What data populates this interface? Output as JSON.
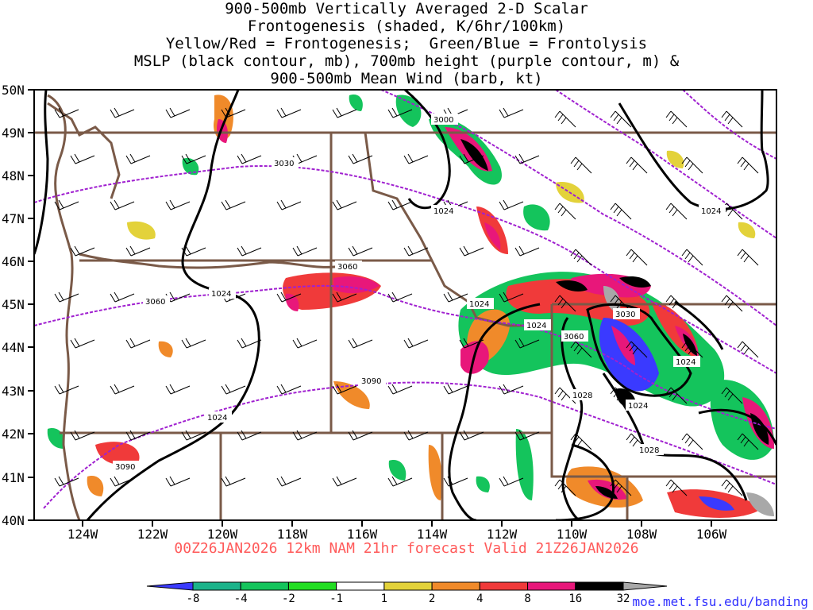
{
  "title_lines": [
    "900-500mb Vertically Averaged 2-D Scalar",
    "Frontogenesis (shaded, K/6hr/100km)",
    "Yellow/Red = Frontogenesis;  Green/Blue = Frontolysis",
    "MSLP (black contour, mb), 700mb height (purple contour, m) &",
    "900-500mb Mean Wind (barb, kt)"
  ],
  "valid_line": "00Z26JAN2026 12km NAM 21hr forecast Valid 21Z26JAN2026",
  "credit": "moe.met.fsu.edu/banding",
  "lat_labels": [
    "50N",
    "49N",
    "48N",
    "47N",
    "46N",
    "45N",
    "44N",
    "43N",
    "42N",
    "41N",
    "40N"
  ],
  "lon_labels": [
    "124W",
    "122W",
    "120W",
    "118W",
    "116W",
    "114W",
    "112W",
    "110W",
    "108W",
    "106W"
  ],
  "colorbar": {
    "ticks": [
      "-8",
      "-4",
      "-2",
      "-1",
      "1",
      "2",
      "4",
      "8",
      "16",
      "32"
    ],
    "colors": [
      "#3a3aff",
      "#1bb38a",
      "#14c45c",
      "#22dd22",
      "#ffffff",
      "#e3d23a",
      "#f08a2a",
      "#f03a3a",
      "#e8177a",
      "#000000",
      "#a8a8a8"
    ]
  },
  "contour_labels": {
    "mslp": [
      "1024",
      "1024",
      "1024",
      "1024",
      "1024",
      "1024",
      "1024",
      "1028",
      "1028",
      "1024",
      "1024"
    ],
    "height": [
      "3000",
      "3030",
      "3060",
      "3060",
      "3090",
      "3090",
      "3030",
      "3060"
    ]
  },
  "colors": {
    "mslp": "#000000",
    "height": "#a020d0",
    "borders": "#7a5a48",
    "frame": "#000000"
  }
}
